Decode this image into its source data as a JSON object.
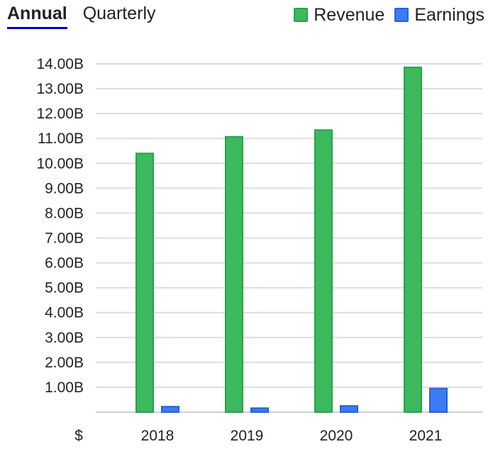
{
  "tabs": [
    {
      "label": "Annual",
      "active": true
    },
    {
      "label": "Quarterly",
      "active": false
    }
  ],
  "legend": [
    {
      "label": "Revenue",
      "color": "#3cb95c",
      "border": "#2aa14a"
    },
    {
      "label": "Earnings",
      "color": "#3a7cf5",
      "border": "#2a5fd6"
    }
  ],
  "currency_symbol": "$",
  "chart_data": {
    "type": "bar",
    "categories": [
      "2018",
      "2019",
      "2020",
      "2021"
    ],
    "series": [
      {
        "name": "Revenue",
        "values": [
          10.4,
          11.07,
          11.34,
          13.86
        ],
        "color": "#3cb95c"
      },
      {
        "name": "Earnings",
        "values": [
          0.22,
          0.16,
          0.25,
          0.95
        ],
        "color": "#3a7cf5"
      }
    ],
    "ylim": [
      0,
      14
    ],
    "yticks": [
      1,
      2,
      3,
      4,
      5,
      6,
      7,
      8,
      9,
      10,
      11,
      12,
      13,
      14
    ],
    "ytick_labels": [
      "1.00B",
      "2.00B",
      "3.00B",
      "4.00B",
      "5.00B",
      "6.00B",
      "7.00B",
      "8.00B",
      "9.00B",
      "10.00B",
      "11.00B",
      "12.00B",
      "13.00B",
      "14.00B"
    ],
    "grid": true
  }
}
